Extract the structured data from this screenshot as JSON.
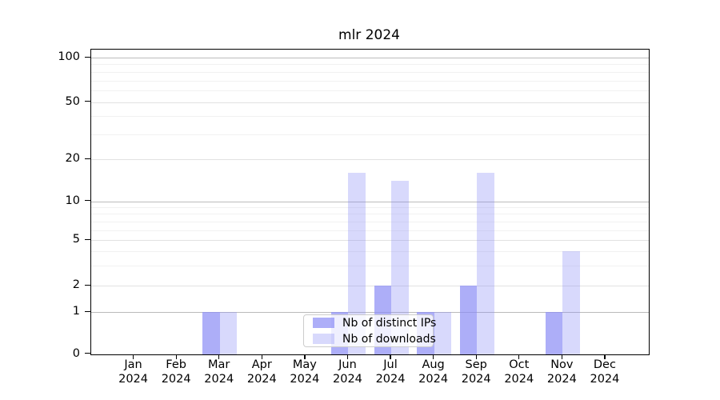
{
  "chart_data": {
    "type": "bar",
    "title": "mlr 2024",
    "categories": [
      "Jan 2024",
      "Feb 2024",
      "Mar 2024",
      "Apr 2024",
      "May 2024",
      "Jun 2024",
      "Jul 2024",
      "Aug 2024",
      "Sep 2024",
      "Oct 2024",
      "Nov 2024",
      "Dec 2024"
    ],
    "series": [
      {
        "name": "Nb of distinct IPs",
        "color": "rgba(138,140,245,0.70)",
        "values": [
          0,
          0,
          1,
          0,
          0,
          1,
          2,
          1,
          2,
          0,
          1,
          0
        ]
      },
      {
        "name": "Nb of downloads",
        "color": "rgba(138,140,245,0.33)",
        "values": [
          0,
          0,
          1,
          0,
          0,
          16,
          14,
          1,
          16,
          0,
          4,
          0
        ]
      }
    ],
    "xlabel": "",
    "ylabel": "",
    "y_ticks": [
      0,
      1,
      2,
      5,
      10,
      20,
      50,
      100
    ],
    "y_tick_labels": [
      "0",
      "1",
      "2",
      "5",
      "10",
      "20",
      "50",
      "100"
    ],
    "y_minor_gridlines": [
      3,
      4,
      6,
      7,
      8,
      9,
      30,
      40,
      60,
      70,
      80,
      90
    ],
    "ylim": [
      0,
      100
    ],
    "y_scale": "log above 1, linear 0-1",
    "grid": true,
    "legend_position": "lower center"
  },
  "colors": {
    "bar_base": "#8a8cf5",
    "spine": "#000000",
    "grid_strong": "#bbbbbb",
    "grid_weak": "#e2e2e2",
    "grid_minor": "#f1f1f1"
  }
}
